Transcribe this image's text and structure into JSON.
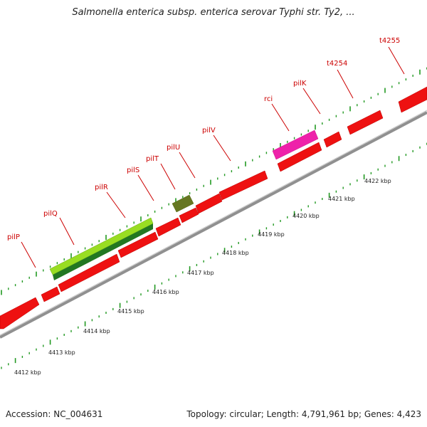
{
  "title": "Salmonella enterica subsp. enterica serovar Typhi str. Ty2, ...",
  "footer": {
    "accession": "Accession: NC_004631",
    "summary": "Topology: circular; Length: 4,791,961 bp; Genes: 4,423"
  },
  "colors": {
    "gene_red": "#ee1111",
    "gene_pink": "#ee22aa",
    "gene_olive": "#667722",
    "gene_lime": "#99dd22",
    "gene_dark_green": "#227722",
    "backbone": "#888888",
    "tick": "#229922",
    "label": "#cc0000"
  },
  "scale_labels": [
    "4412 kbp",
    "4413 kbp",
    "4414 kbp",
    "4415 kbp",
    "4416 kbp",
    "4417 kbp",
    "4418 kbp",
    "4419 kbp",
    "4420 kbp",
    "4421 kbp",
    "4422 kbp"
  ],
  "gene_labels": [
    "pilP",
    "pilQ",
    "pilR",
    "pilS",
    "pilT",
    "pilU",
    "pilV",
    "rci",
    "pilK",
    "t4254",
    "t4255"
  ]
}
